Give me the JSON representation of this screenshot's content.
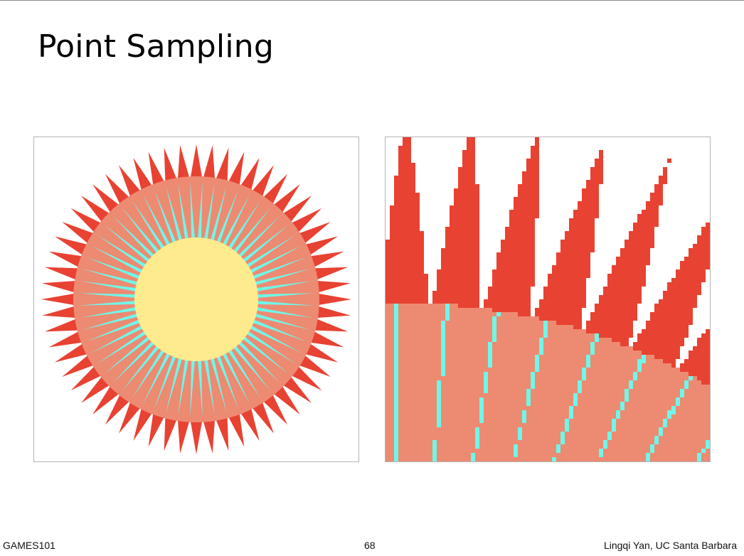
{
  "slide": {
    "title": "Point Sampling"
  },
  "footer": {
    "course": "GAMES101",
    "page_number": "68",
    "author": "Lingqi Yan, UC Santa Barbara"
  },
  "figure": {
    "ray_count": 60,
    "colors": {
      "outer_spikes": "#e84232",
      "middle_disk": "#ed8a72",
      "inner_rays": "#6ff7e8",
      "center_disk": "#feeb8e",
      "panel_border": "#b4b4b4"
    }
  }
}
